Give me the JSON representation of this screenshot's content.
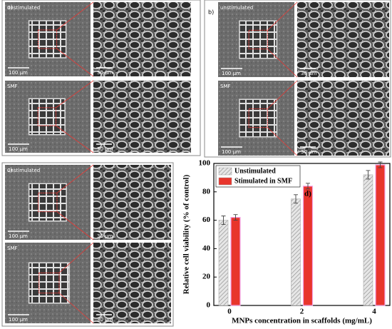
{
  "panels": [
    {
      "label": "a)",
      "rows": [
        {
          "condition": "unstimulated",
          "scale_left": "100 µm",
          "scale_right": "30 µm"
        },
        {
          "condition": "SMF",
          "scale_left": "100 µm",
          "scale_right": "30 µm"
        }
      ]
    },
    {
      "label": "b)",
      "rows": [
        {
          "condition": "unstimulated",
          "scale_left": "100 µm",
          "scale_right": "30 µm"
        },
        {
          "condition": "SMF",
          "scale_left": "100 µm",
          "scale_right": "30 µm"
        }
      ]
    },
    {
      "label": "c)",
      "rows": [
        {
          "condition": "unstimulated",
          "scale_left": "100 µm",
          "scale_right": "30 µm"
        },
        {
          "condition": "SMF",
          "scale_left": "100 µm",
          "scale_right": "30 µm"
        }
      ]
    }
  ],
  "chart_data": {
    "type": "bar",
    "annotation": "d)",
    "y_label": "Relative cell viability (% of control)",
    "x_label": "MNPs concentration in scaffolds (mg/mL)",
    "categories": [
      "0",
      "2",
      "4"
    ],
    "series": [
      {
        "name": "Unstimulated",
        "color": "#bdbdbd",
        "values": [
          60,
          75,
          92
        ],
        "errors": [
          3,
          3,
          3
        ]
      },
      {
        "name": "Stimulated in SMF",
        "color": "#e8352c",
        "values": [
          62,
          84,
          99
        ],
        "errors": [
          2,
          2,
          2
        ]
      }
    ],
    "ylim": [
      0,
      100
    ],
    "yticks": [
      0,
      20,
      40,
      60,
      80,
      100
    ],
    "legend": "top-left"
  }
}
